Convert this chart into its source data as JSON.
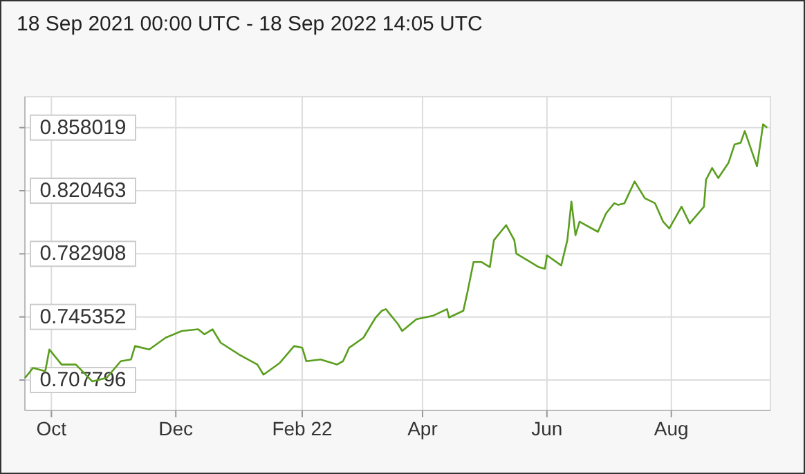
{
  "chart_data": {
    "type": "line",
    "title": "18 Sep 2021 00:00 UTC - 18 Sep 2022 14:05 UTC",
    "x": [
      "2021-09-18",
      "2021-09-22",
      "2021-09-28",
      "2021-09-30",
      "2021-10-06",
      "2021-10-13",
      "2021-10-21",
      "2021-10-28",
      "2021-11-04",
      "2021-11-09",
      "2021-11-11",
      "2021-11-18",
      "2021-11-26",
      "2021-12-04",
      "2021-12-12",
      "2021-12-15",
      "2021-12-19",
      "2021-12-23",
      "2022-01-01",
      "2022-01-10",
      "2022-01-13",
      "2022-01-21",
      "2022-01-28",
      "2022-02-01",
      "2022-02-03",
      "2022-02-10",
      "2022-02-18",
      "2022-02-21",
      "2022-02-24",
      "2022-03-03",
      "2022-03-09",
      "2022-03-12",
      "2022-03-14",
      "2022-03-20",
      "2022-03-22",
      "2022-03-29",
      "2022-04-06",
      "2022-04-13",
      "2022-04-14",
      "2022-04-21",
      "2022-04-23",
      "2022-04-26",
      "2022-04-30",
      "2022-05-04",
      "2022-05-06",
      "2022-05-12",
      "2022-05-16",
      "2022-05-17",
      "2022-05-28",
      "2022-05-31",
      "2022-06-01",
      "2022-06-08",
      "2022-06-11",
      "2022-06-13",
      "2022-06-15",
      "2022-06-17",
      "2022-06-26",
      "2022-06-30",
      "2022-07-04",
      "2022-07-06",
      "2022-07-09",
      "2022-07-14",
      "2022-07-19",
      "2022-07-24",
      "2022-07-28",
      "2022-07-31",
      "2022-08-06",
      "2022-08-10",
      "2022-08-17",
      "2022-08-18",
      "2022-08-21",
      "2022-08-24",
      "2022-08-29",
      "2022-09-01",
      "2022-09-04",
      "2022-09-06",
      "2022-09-10",
      "2022-09-12",
      "2022-09-15",
      "2022-09-17"
    ],
    "series": [
      {
        "color": "#5a9e1e",
        "values": [
          0.709,
          0.715,
          0.713,
          0.726,
          0.717,
          0.717,
          0.707,
          0.709,
          0.719,
          0.72,
          0.728,
          0.726,
          0.733,
          0.737,
          0.738,
          0.735,
          0.738,
          0.73,
          0.723,
          0.717,
          0.711,
          0.718,
          0.728,
          0.727,
          0.719,
          0.72,
          0.717,
          0.719,
          0.727,
          0.733,
          0.745,
          0.749,
          0.75,
          0.741,
          0.737,
          0.744,
          0.746,
          0.75,
          0.745,
          0.749,
          0.76,
          0.778,
          0.778,
          0.775,
          0.791,
          0.8,
          0.791,
          0.783,
          0.775,
          0.774,
          0.782,
          0.776,
          0.791,
          0.814,
          0.794,
          0.802,
          0.796,
          0.807,
          0.813,
          0.812,
          0.813,
          0.826,
          0.816,
          0.813,
          0.802,
          0.798,
          0.811,
          0.801,
          0.811,
          0.827,
          0.834,
          0.828,
          0.837,
          0.848,
          0.849,
          0.856,
          0.842,
          0.835,
          0.86,
          0.858
        ]
      }
    ],
    "xlim": [
      "2021-09-18",
      "2022-09-18T14:05"
    ],
    "xticks": [
      {
        "value": "2021-10-01",
        "label": "Oct"
      },
      {
        "value": "2021-12-01",
        "label": "Dec"
      },
      {
        "value": "2022-02-01",
        "label": "Feb 22"
      },
      {
        "value": "2022-04-01",
        "label": "Apr"
      },
      {
        "value": "2022-06-01",
        "label": "Jun"
      },
      {
        "value": "2022-08-01",
        "label": "Aug"
      }
    ],
    "ylim": [
      0.6897,
      0.8764
    ],
    "yticks": [
      0.707796,
      0.745352,
      0.782908,
      0.820463,
      0.858019
    ],
    "grid": true,
    "marker": "none",
    "line_style": "solid"
  }
}
